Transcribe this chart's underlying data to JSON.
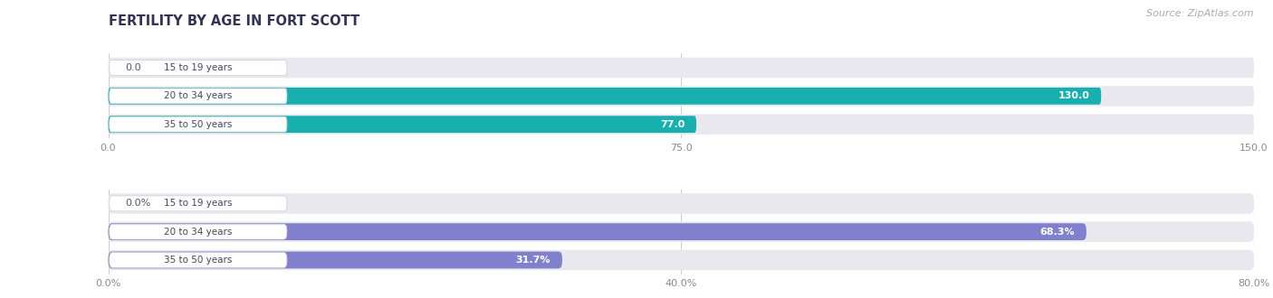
{
  "title": "FERTILITY BY AGE IN FORT SCOTT",
  "source": "Source: ZipAtlas.com",
  "top_chart": {
    "categories": [
      "15 to 19 years",
      "20 to 34 years",
      "35 to 50 years"
    ],
    "values": [
      0.0,
      130.0,
      77.0
    ],
    "xlim": [
      0,
      150.0
    ],
    "xticks": [
      0.0,
      75.0,
      150.0
    ],
    "bar_color_main": "#18b0ae",
    "bar_color_light": "#90d4d3",
    "label_bg": "#ffffff"
  },
  "bottom_chart": {
    "categories": [
      "15 to 19 years",
      "20 to 34 years",
      "35 to 50 years"
    ],
    "values": [
      0.0,
      68.3,
      31.7
    ],
    "xlim": [
      0,
      80.0
    ],
    "xticks": [
      0.0,
      40.0,
      80.0
    ],
    "xtick_labels": [
      "0.0%",
      "40.0%",
      "80.0%"
    ],
    "bar_color_main": "#8080cc",
    "bar_color_light": "#aaaadd",
    "label_bg": "#ffffff"
  },
  "bar_bg_color": "#e8e8ee",
  "row_bg_color": "#f2f2f7",
  "label_color": "#444466",
  "value_color_inside": "#ffffff",
  "value_color_outside": "#555566",
  "title_color": "#333355",
  "source_color": "#aaaaaa",
  "separator_color": "#ddddee"
}
